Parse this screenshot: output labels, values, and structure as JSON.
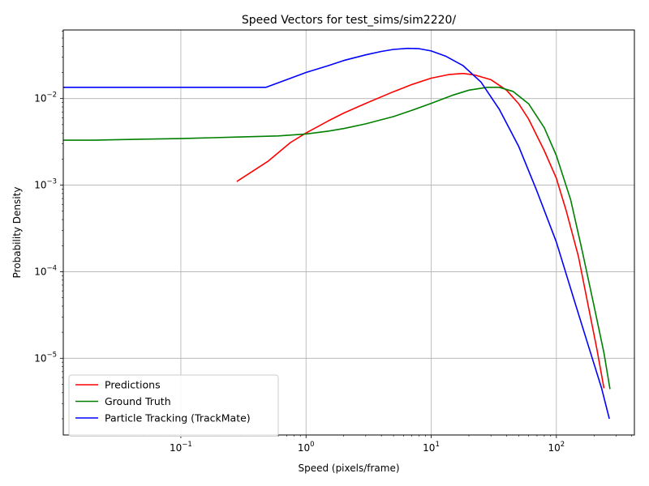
{
  "chart_data": {
    "type": "line",
    "title": "Speed Vectors for test_sims/sim2220/",
    "xlabel": "Speed (pixels/frame)",
    "ylabel": "Probability Density",
    "xscale": "log",
    "yscale": "log",
    "xlim": [
      0.0115,
      420
    ],
    "ylim": [
      1.3e-06,
      0.062
    ],
    "grid": true,
    "legend_position": "lower-left",
    "x_ticks": [
      {
        "base": "10",
        "exp": "−1",
        "value": 0.1
      },
      {
        "base": "10",
        "exp": "0",
        "value": 1
      },
      {
        "base": "10",
        "exp": "1",
        "value": 10
      },
      {
        "base": "10",
        "exp": "2",
        "value": 100
      }
    ],
    "y_ticks": [
      {
        "base": "10",
        "exp": "−5",
        "value": 1e-05
      },
      {
        "base": "10",
        "exp": "−4",
        "value": 0.0001
      },
      {
        "base": "10",
        "exp": "−3",
        "value": 0.001
      },
      {
        "base": "10",
        "exp": "−2",
        "value": 0.01
      }
    ],
    "series": [
      {
        "name": "Predictions",
        "color": "#ff0000",
        "points": [
          [
            0.28,
            0.0011
          ],
          [
            0.5,
            0.0019
          ],
          [
            0.75,
            0.0031
          ],
          [
            1,
            0.004
          ],
          [
            1.5,
            0.0055
          ],
          [
            2,
            0.0068
          ],
          [
            3,
            0.0088
          ],
          [
            5,
            0.012
          ],
          [
            7,
            0.0145
          ],
          [
            10,
            0.0172
          ],
          [
            14,
            0.019
          ],
          [
            18,
            0.0195
          ],
          [
            22,
            0.0188
          ],
          [
            30,
            0.0165
          ],
          [
            40,
            0.0125
          ],
          [
            50,
            0.0087
          ],
          [
            60,
            0.0058
          ],
          [
            80,
            0.0025
          ],
          [
            100,
            0.0012
          ],
          [
            120,
            0.0005
          ],
          [
            150,
            0.00015
          ],
          [
            180,
            4e-05
          ],
          [
            210,
            1.3e-05
          ],
          [
            240,
            4.5e-06
          ]
        ]
      },
      {
        "name": "Ground Truth",
        "color": "#008000",
        "points": [
          [
            0.0115,
            0.0033
          ],
          [
            0.02,
            0.0033
          ],
          [
            0.05,
            0.0034
          ],
          [
            0.1,
            0.00345
          ],
          [
            0.3,
            0.0036
          ],
          [
            0.6,
            0.0037
          ],
          [
            1,
            0.0039
          ],
          [
            1.5,
            0.0042
          ],
          [
            2,
            0.0045
          ],
          [
            3,
            0.0051
          ],
          [
            5,
            0.0062
          ],
          [
            7,
            0.0073
          ],
          [
            10,
            0.0088
          ],
          [
            15,
            0.011
          ],
          [
            20,
            0.0125
          ],
          [
            28,
            0.0135
          ],
          [
            35,
            0.0135
          ],
          [
            45,
            0.0121
          ],
          [
            60,
            0.0087
          ],
          [
            80,
            0.0046
          ],
          [
            100,
            0.0022
          ],
          [
            130,
            0.00068
          ],
          [
            160,
            0.00018
          ],
          [
            200,
            4e-05
          ],
          [
            240,
            1.15e-05
          ],
          [
            268,
            4.4e-06
          ]
        ]
      },
      {
        "name": "Particle Tracking (TrackMate)",
        "color": "#0000ff",
        "points": [
          [
            0.0115,
            0.0135
          ],
          [
            0.1,
            0.0135
          ],
          [
            0.48,
            0.0135
          ],
          [
            0.7,
            0.0165
          ],
          [
            1,
            0.02
          ],
          [
            1.5,
            0.024
          ],
          [
            2,
            0.0275
          ],
          [
            3,
            0.032
          ],
          [
            4,
            0.035
          ],
          [
            5,
            0.037
          ],
          [
            6.5,
            0.038
          ],
          [
            8,
            0.0377
          ],
          [
            10,
            0.0355
          ],
          [
            13,
            0.031
          ],
          [
            18,
            0.024
          ],
          [
            25,
            0.0155
          ],
          [
            35,
            0.0075
          ],
          [
            50,
            0.0028
          ],
          [
            70,
            0.00085
          ],
          [
            100,
            0.00022
          ],
          [
            140,
            4.5e-05
          ],
          [
            180,
            1.4e-05
          ],
          [
            230,
            4.5e-06
          ],
          [
            265,
            2e-06
          ]
        ]
      }
    ]
  }
}
